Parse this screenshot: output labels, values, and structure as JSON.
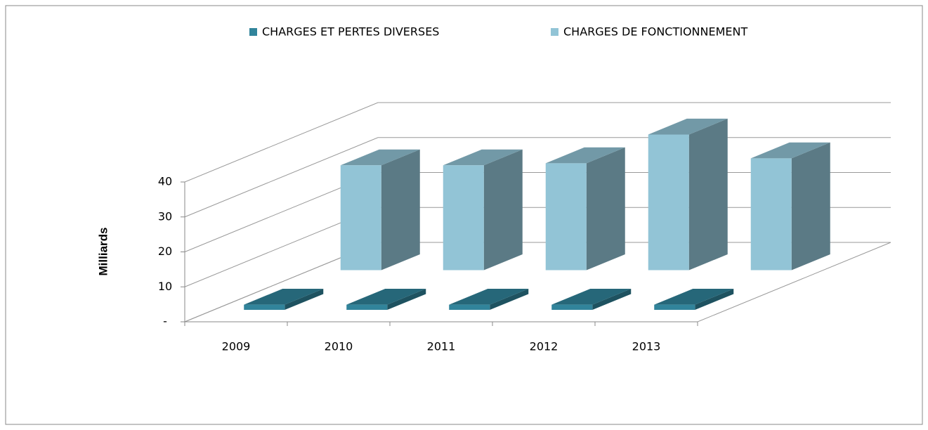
{
  "chart_data": {
    "type": "bar3d",
    "categories": [
      "2009",
      "2010",
      "2011",
      "2012",
      "2013"
    ],
    "series": [
      {
        "name": "CHARGES ET PERTES DIVERSES",
        "color": "#31849b",
        "values": [
          1.5,
          1.5,
          1.5,
          1.5,
          1.5
        ]
      },
      {
        "name": "CHARGES DE FONCTIONNEMENT",
        "color": "#92c4d6",
        "values": [
          30,
          30,
          30.6,
          38.8,
          32
        ]
      }
    ],
    "y_label": "Milliards",
    "ylim": [
      0,
      40
    ],
    "yticks": [
      {
        "value": 0,
        "label": "-"
      },
      10,
      20,
      30,
      40
    ],
    "grid": true,
    "legend": "top"
  }
}
